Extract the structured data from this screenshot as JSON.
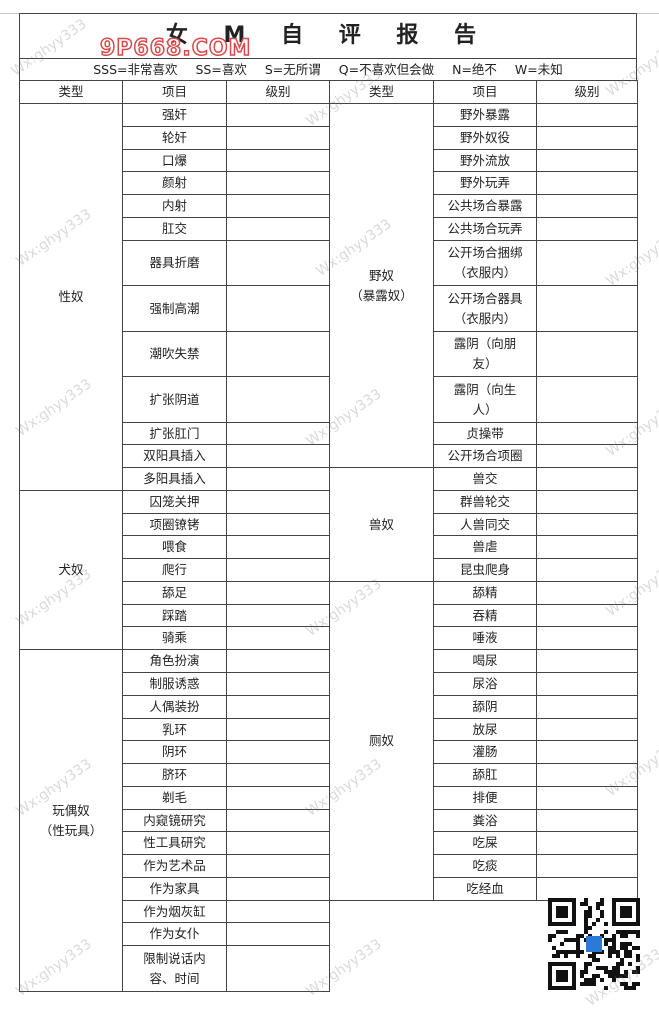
{
  "title": "女 M 自 评 报 告",
  "watermark_logo": "9P668.COM",
  "watermark_text": "Wx:ghyy333",
  "legend": [
    "SSS=非常喜欢",
    "SS=喜欢",
    "S=无所谓",
    "Q=不喜欢但会做",
    "N=绝不",
    "W=未知"
  ],
  "headers": {
    "type": "类型",
    "item": "项目",
    "level": "级别"
  },
  "left_groups": [
    {
      "type": "性奴",
      "items": [
        {
          "label": "强奸",
          "rows": 1
        },
        {
          "label": "轮奸",
          "rows": 1
        },
        {
          "label": "口爆",
          "rows": 1
        },
        {
          "label": "颜射",
          "rows": 1
        },
        {
          "label": "内射",
          "rows": 1
        },
        {
          "label": "肛交",
          "rows": 1
        },
        {
          "label": "器具折磨",
          "rows": 2
        },
        {
          "label": "强制高潮",
          "rows": 2
        },
        {
          "label": "潮吹失禁",
          "rows": 2
        },
        {
          "label": "扩张阴道",
          "rows": 2
        },
        {
          "label": "扩张肛门",
          "rows": 1
        },
        {
          "label": "双阳具插入",
          "rows": 1
        },
        {
          "label": "多阳具插入",
          "rows": 1
        }
      ]
    },
    {
      "type": "犬奴",
      "items": [
        {
          "label": "囚笼关押",
          "rows": 1
        },
        {
          "label": "项圈镣铐",
          "rows": 1
        },
        {
          "label": "喂食",
          "rows": 1
        },
        {
          "label": "爬行",
          "rows": 1
        },
        {
          "label": "舔足",
          "rows": 1
        },
        {
          "label": "踩踏",
          "rows": 1
        },
        {
          "label": "骑乘",
          "rows": 1
        }
      ]
    },
    {
      "type": "玩偶奴\n（性玩具）",
      "items": [
        {
          "label": "角色扮演",
          "rows": 1
        },
        {
          "label": "制服诱惑",
          "rows": 1
        },
        {
          "label": "人偶装扮",
          "rows": 1
        },
        {
          "label": "乳环",
          "rows": 1
        },
        {
          "label": "阴环",
          "rows": 1
        },
        {
          "label": "脐环",
          "rows": 1
        },
        {
          "label": "剃毛",
          "rows": 1
        },
        {
          "label": "内窥镜研究",
          "rows": 1
        },
        {
          "label": "性工具研究",
          "rows": 1
        },
        {
          "label": "作为艺术品",
          "rows": 1
        },
        {
          "label": "作为家具",
          "rows": 1
        },
        {
          "label": "作为烟灰缸",
          "rows": 1
        },
        {
          "label": "作为女仆",
          "rows": 1
        },
        {
          "label": "限制说话内\n容、时间",
          "rows": 2
        }
      ]
    }
  ],
  "right_groups": [
    {
      "type": "野奴\n（暴露奴）",
      "items": [
        {
          "label": "野外暴露",
          "rows": 1
        },
        {
          "label": "野外奴役",
          "rows": 1
        },
        {
          "label": "野外流放",
          "rows": 1
        },
        {
          "label": "野外玩弄",
          "rows": 1
        },
        {
          "label": "公共场合暴露",
          "rows": 1
        },
        {
          "label": "公共场合玩弄",
          "rows": 1
        },
        {
          "label": "公开场合捆绑\n（衣服内）",
          "rows": 2
        },
        {
          "label": "公开场合器具\n（衣服内）",
          "rows": 2
        },
        {
          "label": "露阴（向朋\n友）",
          "rows": 2
        },
        {
          "label": "露阴（向生\n人）",
          "rows": 2
        },
        {
          "label": "贞操带",
          "rows": 1
        },
        {
          "label": "公开场合项圈",
          "rows": 1
        }
      ]
    },
    {
      "type": "兽奴",
      "items": [
        {
          "label": "兽交",
          "rows": 1
        },
        {
          "label": "群兽轮交",
          "rows": 1
        },
        {
          "label": "人兽同交",
          "rows": 1
        },
        {
          "label": "兽虐",
          "rows": 1
        },
        {
          "label": "昆虫爬身",
          "rows": 1
        }
      ]
    },
    {
      "type": "厕奴",
      "items": [
        {
          "label": "舔精",
          "rows": 1
        },
        {
          "label": "吞精",
          "rows": 1
        },
        {
          "label": "唾液",
          "rows": 1
        },
        {
          "label": "喝尿",
          "rows": 1
        },
        {
          "label": "尿浴",
          "rows": 1
        },
        {
          "label": "舔阴",
          "rows": 1
        },
        {
          "label": "放尿",
          "rows": 1
        },
        {
          "label": "灌肠",
          "rows": 1
        },
        {
          "label": "舔肛",
          "rows": 1
        },
        {
          "label": "排便",
          "rows": 1
        },
        {
          "label": "粪浴",
          "rows": 1
        },
        {
          "label": "吃屎",
          "rows": 1
        },
        {
          "label": "吃痰",
          "rows": 1
        },
        {
          "label": "吃经血",
          "rows": 1
        }
      ]
    }
  ]
}
